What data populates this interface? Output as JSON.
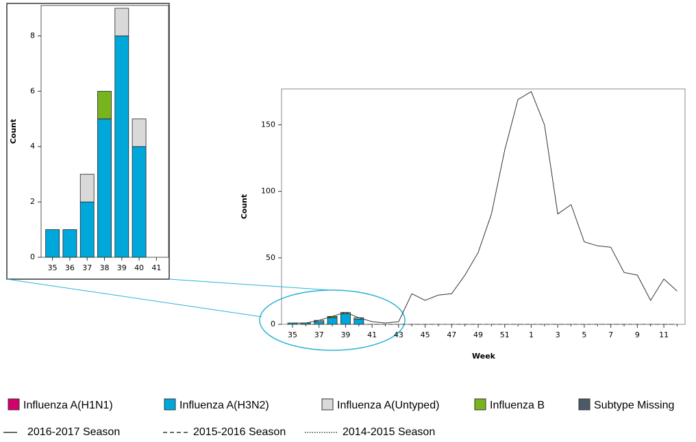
{
  "chart_data": [
    {
      "type": "bar",
      "stacked": true,
      "y_label": "Count",
      "categories": [
        "35",
        "36",
        "37",
        "38",
        "39",
        "40",
        "41"
      ],
      "series": [
        {
          "name": "Influenza A(H1N1)",
          "color": "#d4006e",
          "values": [
            0,
            0,
            0,
            0,
            0,
            0,
            0
          ]
        },
        {
          "name": "Influenza A(H3N2)",
          "color": "#00a7da",
          "values": [
            1,
            1,
            2,
            5,
            8,
            4,
            0
          ]
        },
        {
          "name": "Influenza A(Untyped)",
          "color": "#d9d9d9",
          "values": [
            0,
            0,
            1,
            0,
            1,
            1,
            0
          ]
        },
        {
          "name": "Influenza B",
          "color": "#78b41e",
          "values": [
            0,
            0,
            0,
            1,
            0,
            0,
            0
          ]
        },
        {
          "name": "Subtype Missing",
          "color": "#4b5a68",
          "values": [
            0,
            0,
            0,
            0,
            0,
            0,
            0
          ]
        }
      ],
      "ylim": [
        0,
        9.1
      ],
      "yticks": [
        0,
        2,
        4,
        6,
        8
      ]
    },
    {
      "type": "line",
      "x_label": "Week",
      "y_label": "Count",
      "categories": [
        "35",
        null,
        "37",
        null,
        "39",
        null,
        "41",
        null,
        "43",
        null,
        "45",
        null,
        "47",
        null,
        "49",
        null,
        "51",
        null,
        "1",
        null,
        "3",
        null,
        "5",
        null,
        "7",
        null,
        "9",
        null,
        "11",
        null
      ],
      "series": [
        {
          "name": "2016-2017 Season",
          "color": "#333333",
          "style": "solid",
          "values": [
            1,
            1,
            3,
            6,
            9,
            5,
            2,
            1,
            2,
            23,
            18,
            22,
            23,
            37,
            54,
            83,
            131,
            169,
            175,
            150,
            83,
            90,
            62,
            59,
            58,
            39,
            37,
            18,
            34,
            25
          ]
        },
        {
          "name": "2015-2016 Season",
          "color": "#333333",
          "style": "dashed",
          "values": [
            0,
            0,
            0,
            0,
            0,
            0,
            0,
            0,
            0,
            0,
            0,
            0,
            0,
            0,
            0,
            0,
            0,
            0,
            0,
            0,
            0,
            0,
            0,
            0,
            0,
            0,
            0,
            0,
            0,
            0
          ]
        },
        {
          "name": "2014-2015 Season",
          "color": "#333333",
          "style": "dotted",
          "values": [
            0,
            0,
            0,
            0,
            0,
            0,
            0,
            0,
            0,
            0,
            0,
            0,
            0,
            0,
            0,
            0,
            0,
            0,
            0,
            0,
            0,
            0,
            0,
            0,
            0,
            0,
            0,
            0,
            0,
            0
          ]
        }
      ],
      "ylim": [
        0,
        177
      ],
      "yticks": [
        0,
        50,
        100,
        150
      ]
    }
  ]
}
